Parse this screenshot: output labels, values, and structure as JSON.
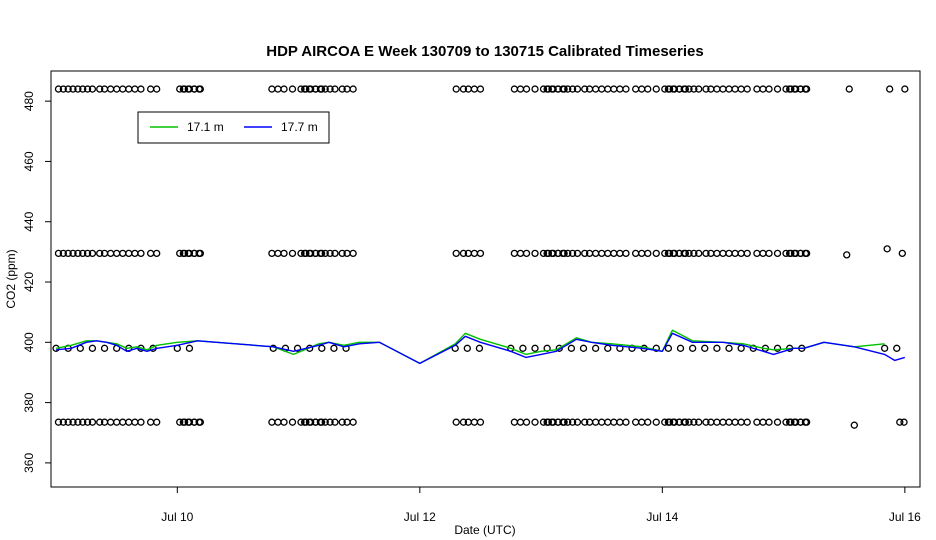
{
  "chart_data": {
    "type": "scatter",
    "title": "HDP AIRCOA E  Week 130709 to 130715  Calibrated Timeseries",
    "xlabel": "Date (UTC)",
    "ylabel": "CO2 (ppm)",
    "xlim": [
      "2013-07-08T23:00",
      "2013-07-16T03:00"
    ],
    "ylim": [
      352,
      490
    ],
    "x_ticks": [
      {
        "label": "Jul 10",
        "at": "2013-07-10T00:00"
      },
      {
        "label": "Jul 12",
        "at": "2013-07-12T00:00"
      },
      {
        "label": "Jul 14",
        "at": "2013-07-14T00:00"
      },
      {
        "label": "Jul 16",
        "at": "2013-07-16T00:00"
      }
    ],
    "y_ticks": [
      360,
      380,
      400,
      420,
      440,
      460,
      480
    ],
    "legend": {
      "placement": "top-left",
      "entries": [
        {
          "label": "17.1 m",
          "color": "#00c000"
        },
        {
          "label": "17.7 m",
          "color": "#0000ff"
        }
      ]
    },
    "calibration_levels_ppm": [
      373.5,
      429.5,
      484
    ],
    "calibration_day_offsets": [
      0.02,
      0.06,
      0.1,
      0.14,
      0.18,
      0.22,
      0.26,
      0.3,
      0.36,
      0.4,
      0.45,
      0.5,
      0.55,
      0.6,
      0.65,
      0.7,
      0.78,
      0.83,
      0.88,
      0.95,
      1.05,
      1.09,
      1.14,
      1.19
    ],
    "calibration_extra_points": [
      {
        "x": "2013-07-15T13:00",
        "y": 484
      },
      {
        "x": "2013-07-15T12:30",
        "y": 429
      },
      {
        "x": "2013-07-15T14:00",
        "y": 372.5
      },
      {
        "x": "2013-07-15T21:00",
        "y": 484
      },
      {
        "x": "2013-07-15T20:30",
        "y": 431
      },
      {
        "x": "2013-07-15T23:00",
        "y": 373.5
      },
      {
        "x": "2013-07-16T00:00",
        "y": 484
      },
      {
        "x": "2013-07-15T23:30",
        "y": 429.5
      },
      {
        "x": "2013-07-15T23:50",
        "y": 373.5
      }
    ],
    "sample_segments": [
      {
        "start": "2013-07-09T00:00",
        "end": "2013-07-09T20:00",
        "level": 398
      },
      {
        "start": "2013-07-10T00:00",
        "end": "2013-07-10T04:00",
        "level": 398
      },
      {
        "start": "2013-07-10T19:00",
        "end": "2013-07-11T10:00",
        "level": 398
      },
      {
        "start": "2013-07-12T07:00",
        "end": "2013-07-12T12:00",
        "level": 398
      },
      {
        "start": "2013-07-12T18:00",
        "end": "2013-07-15T04:00",
        "level": 398
      },
      {
        "start": "2013-07-15T20:00",
        "end": "2013-07-16T00:00",
        "level": 398
      }
    ],
    "series": [
      {
        "name": "17.7 m",
        "color": "#0000ff",
        "x": [
          "2013-07-09T00:00",
          "2013-07-09T03:00",
          "2013-07-09T06:00",
          "2013-07-09T08:00",
          "2013-07-09T10:00",
          "2013-07-09T12:00",
          "2013-07-09T14:00",
          "2013-07-09T16:00",
          "2013-07-09T18:00",
          "2013-07-09T20:00",
          "2013-07-10T00:00",
          "2013-07-10T04:00",
          "2013-07-10T19:00",
          "2013-07-10T23:00",
          "2013-07-11T04:00",
          "2013-07-11T06:00",
          "2013-07-11T09:00",
          "2013-07-11T12:00",
          "2013-07-11T16:00",
          "2013-07-12T00:00",
          "2013-07-12T07:00",
          "2013-07-12T09:00",
          "2013-07-12T12:00",
          "2013-07-12T18:00",
          "2013-07-12T21:00",
          "2013-07-13T00:00",
          "2013-07-13T03:00",
          "2013-07-13T07:00",
          "2013-07-13T10:00",
          "2013-07-13T14:00",
          "2013-07-13T20:00",
          "2013-07-14T00:00",
          "2013-07-14T02:00",
          "2013-07-14T06:00",
          "2013-07-14T12:00",
          "2013-07-14T16:00",
          "2013-07-14T20:00",
          "2013-07-14T22:00",
          "2013-07-15T02:00",
          "2013-07-15T04:00",
          "2013-07-15T08:00",
          "2013-07-15T14:00",
          "2013-07-15T20:00",
          "2013-07-15T22:00",
          "2013-07-16T00:00"
        ],
        "y": [
          397.5,
          398,
          400,
          400.5,
          400,
          399,
          397,
          398,
          397,
          398,
          399,
          400.5,
          398.5,
          397,
          399,
          400,
          398.5,
          399.5,
          400,
          393,
          399,
          402,
          400,
          397,
          395,
          396,
          397,
          401,
          400,
          399,
          398,
          397,
          403,
          400,
          400,
          399,
          397,
          396,
          398,
          398,
          400,
          398.5,
          396,
          394,
          395
        ]
      },
      {
        "name": "17.1 m",
        "color": "#00c000",
        "x": [
          "2013-07-09T00:00",
          "2013-07-09T03:00",
          "2013-07-09T06:00",
          "2013-07-09T08:00",
          "2013-07-09T10:00",
          "2013-07-09T12:00",
          "2013-07-09T14:00",
          "2013-07-09T16:00",
          "2013-07-09T18:00",
          "2013-07-09T20:00",
          "2013-07-10T00:00",
          "2013-07-10T04:00",
          "2013-07-10T19:00",
          "2013-07-10T23:00",
          "2013-07-11T04:00",
          "2013-07-11T06:00",
          "2013-07-11T09:00",
          "2013-07-11T12:00",
          "2013-07-11T16:00",
          "2013-07-12T00:00",
          "2013-07-12T07:00",
          "2013-07-12T09:00",
          "2013-07-12T12:00",
          "2013-07-12T18:00",
          "2013-07-12T21:00",
          "2013-07-13T00:00",
          "2013-07-13T03:00",
          "2013-07-13T07:00",
          "2013-07-13T10:00",
          "2013-07-13T14:00",
          "2013-07-13T20:00",
          "2013-07-14T00:00",
          "2013-07-14T02:00",
          "2013-07-14T06:00",
          "2013-07-14T12:00",
          "2013-07-14T16:00",
          "2013-07-14T20:00",
          "2013-07-14T22:00",
          "2013-07-15T02:00",
          "2013-07-15T04:00",
          "2013-07-15T08:00",
          "2013-07-15T14:00",
          "2013-07-15T20:00"
        ],
        "y": [
          398,
          399,
          400.5,
          400.5,
          400,
          399.5,
          398,
          398.5,
          397.5,
          399,
          400,
          400.5,
          398.5,
          396,
          399.5,
          400,
          399,
          400,
          400,
          393,
          399.5,
          403,
          401,
          398,
          396,
          397,
          397.5,
          401.5,
          400,
          399.5,
          398.5,
          397,
          404,
          400.5,
          400,
          399.5,
          398,
          397.5,
          398,
          398,
          400,
          398.5,
          399.5
        ]
      }
    ]
  }
}
